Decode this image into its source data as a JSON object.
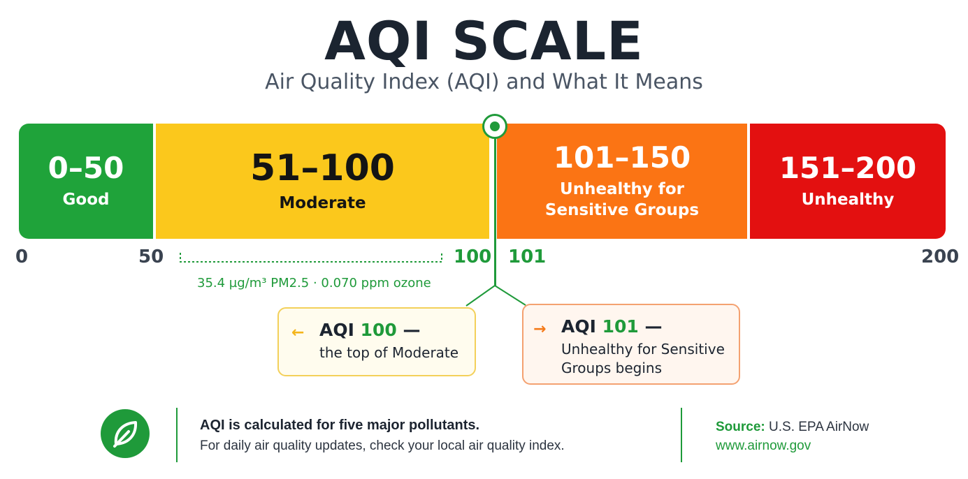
{
  "header": {
    "title": "AQI SCALE",
    "subtitle": "Air Quality Index (AQI) and What It Means"
  },
  "segments": [
    {
      "range": "0–50",
      "category": "Good",
      "color": "#1fa33a"
    },
    {
      "range": "51–100",
      "category": "Moderate",
      "color": "#fbc81c"
    },
    {
      "range": "101–150",
      "category_line1": "Unhealthy for",
      "category_line2": "Sensitive Groups",
      "color": "#fb7414"
    },
    {
      "range": "151–200",
      "category": "Unhealthy",
      "color": "#e31010"
    }
  ],
  "ticks": {
    "t0": "0",
    "t50": "50",
    "t100": "100",
    "t101": "101",
    "t200": "200"
  },
  "concentration_note": "35.4 µg/m³ PM2.5 · 0.070 ppm ozone",
  "callouts": {
    "left": {
      "arrow": "←",
      "prefix": "AQI ",
      "number": "100",
      "suffix": " —",
      "body": "the top of Moderate"
    },
    "right": {
      "arrow": "→",
      "prefix": "AQI ",
      "number": "101",
      "suffix": " —",
      "body_line1": "Unhealthy for Sensitive",
      "body_line2": "Groups begins"
    }
  },
  "footer": {
    "icon": "leaf-icon",
    "title": "AQI is calculated for five major pollutants.",
    "body": "For daily air quality updates, check your local air quality index.",
    "source_label": "Source:",
    "source_name": " U.S. EPA AirNow",
    "source_url": "www.airnow.gov"
  },
  "colors": {
    "accent_green": "#1f9a3a",
    "good": "#1fa33a",
    "moderate": "#fbc81c",
    "usg": "#fb7414",
    "unhealthy": "#e31010"
  }
}
